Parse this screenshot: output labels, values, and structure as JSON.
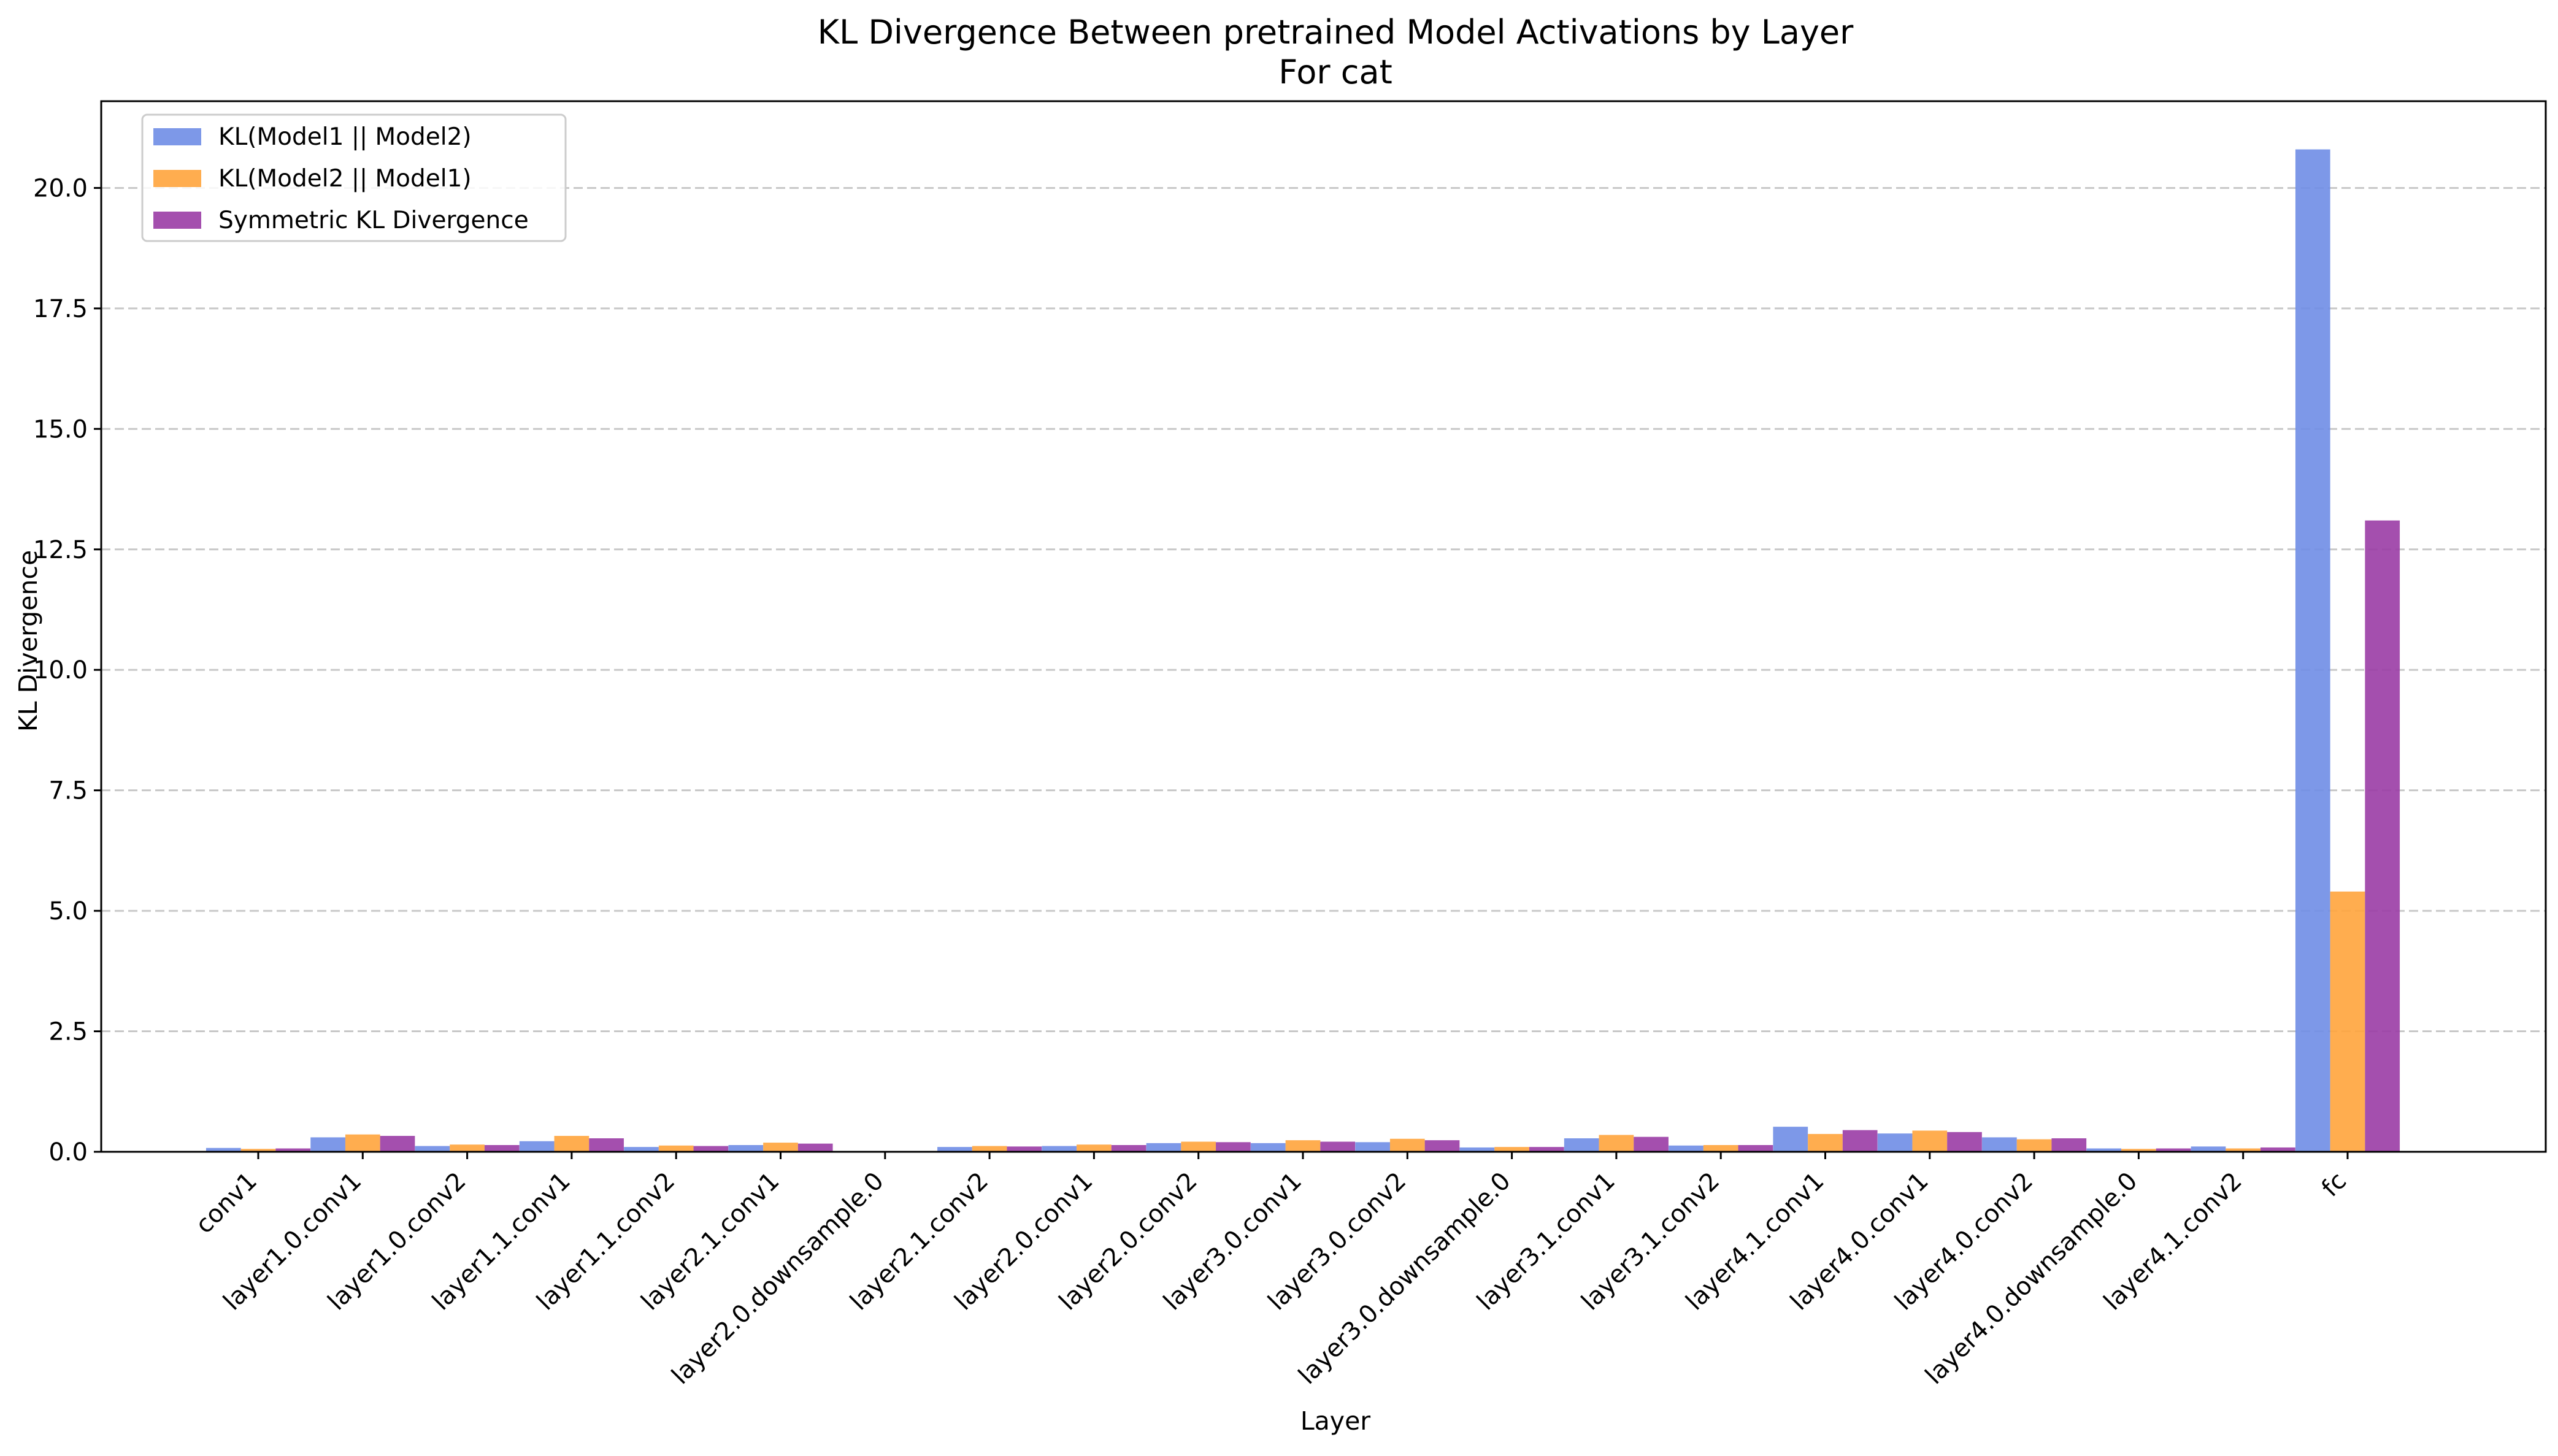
{
  "chart_data": {
    "type": "bar",
    "title": "KL Divergence Between pretrained Model Activations by Layer",
    "subtitle": "For cat",
    "xlabel": "Layer",
    "ylabel": "KL Divergence",
    "ylim": [
      0,
      21.8
    ],
    "yticks": [
      "0.0",
      "2.5",
      "5.0",
      "7.5",
      "10.0",
      "12.5",
      "15.0",
      "17.5",
      "20.0"
    ],
    "ytick_values": [
      0,
      2.5,
      5,
      7.5,
      10,
      12.5,
      15,
      17.5,
      20
    ],
    "grid": "horizontal dashed",
    "legend_position": "top-left",
    "categories": [
      "conv1",
      "layer1.0.conv1",
      "layer1.0.conv2",
      "layer1.1.conv1",
      "layer1.1.conv2",
      "layer2.1.conv1",
      "layer2.0.downsample.0",
      "layer2.1.conv2",
      "layer2.0.conv1",
      "layer2.0.conv2",
      "layer3.0.conv1",
      "layer3.0.conv2",
      "layer3.0.downsample.0",
      "layer3.1.conv1",
      "layer3.1.conv2",
      "layer4.1.conv1",
      "layer4.0.conv1",
      "layer4.0.conv2",
      "layer4.0.downsample.0",
      "layer4.1.conv2",
      "fc"
    ],
    "series": [
      {
        "name": "KL(Model1 || Model2)",
        "color": "#6f8de6",
        "values": [
          0.08,
          0.3,
          0.12,
          0.22,
          0.1,
          0.14,
          0.01,
          0.1,
          0.12,
          0.18,
          0.18,
          0.2,
          0.09,
          0.28,
          0.13,
          0.52,
          0.38,
          0.3,
          0.07,
          0.11,
          20.8
        ]
      },
      {
        "name": "KL(Model2 || Model1)",
        "color": "#ffa43c",
        "values": [
          0.06,
          0.36,
          0.15,
          0.33,
          0.13,
          0.19,
          0.01,
          0.12,
          0.15,
          0.21,
          0.24,
          0.27,
          0.1,
          0.35,
          0.14,
          0.37,
          0.44,
          0.26,
          0.06,
          0.07,
          5.4
        ]
      },
      {
        "name": "Symmetric KL Divergence",
        "color": "#9a3ca5",
        "values": [
          0.07,
          0.33,
          0.14,
          0.28,
          0.12,
          0.17,
          0.01,
          0.11,
          0.14,
          0.2,
          0.21,
          0.24,
          0.1,
          0.31,
          0.14,
          0.45,
          0.41,
          0.28,
          0.07,
          0.09,
          13.1
        ]
      }
    ]
  }
}
